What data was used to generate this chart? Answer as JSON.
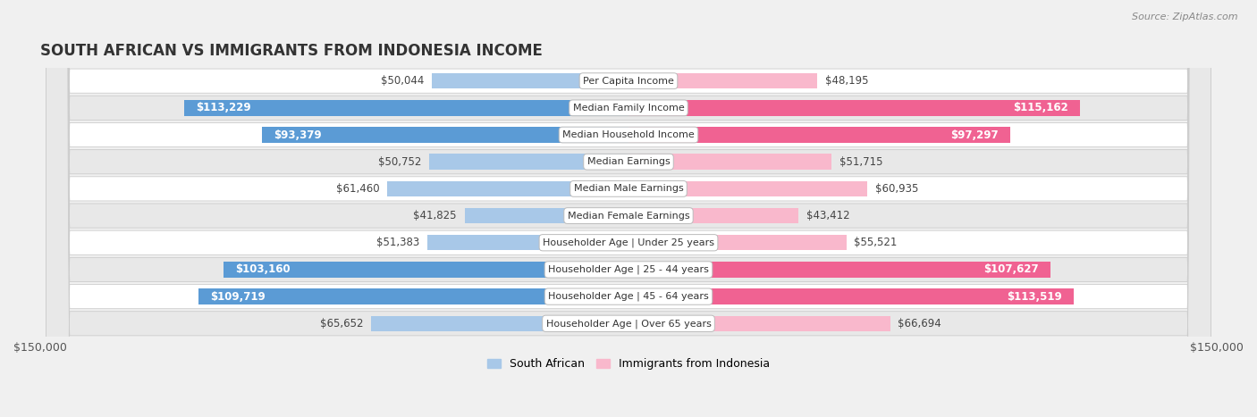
{
  "title": "SOUTH AFRICAN VS IMMIGRANTS FROM INDONESIA INCOME",
  "source": "Source: ZipAtlas.com",
  "categories": [
    "Per Capita Income",
    "Median Family Income",
    "Median Household Income",
    "Median Earnings",
    "Median Male Earnings",
    "Median Female Earnings",
    "Householder Age | Under 25 years",
    "Householder Age | 25 - 44 years",
    "Householder Age | 45 - 64 years",
    "Householder Age | Over 65 years"
  ],
  "south_african": [
    50044,
    113229,
    93379,
    50752,
    61460,
    41825,
    51383,
    103160,
    109719,
    65652
  ],
  "indonesia": [
    48195,
    115162,
    97297,
    51715,
    60935,
    43412,
    55521,
    107627,
    113519,
    66694
  ],
  "south_african_labels": [
    "$50,044",
    "$113,229",
    "$93,379",
    "$50,752",
    "$61,460",
    "$41,825",
    "$51,383",
    "$103,160",
    "$109,719",
    "$65,652"
  ],
  "indonesia_labels": [
    "$48,195",
    "$115,162",
    "$97,297",
    "$51,715",
    "$60,935",
    "$43,412",
    "$55,521",
    "$107,627",
    "$113,519",
    "$66,694"
  ],
  "color_sa_light": "#a8c8e8",
  "color_sa_dark": "#5b9bd5",
  "color_ind_light": "#f9b8cc",
  "color_ind_dark": "#f06292",
  "sa_large_threshold": 80000,
  "ind_large_threshold": 80000,
  "max_val": 150000,
  "bg_color": "#f0f0f0",
  "row_bg_white": "#ffffff",
  "row_bg_gray": "#e8e8e8",
  "bar_height": 0.58,
  "label_fontsize": 8.5,
  "title_fontsize": 12,
  "legend_fontsize": 9,
  "cat_fontsize": 8.0
}
